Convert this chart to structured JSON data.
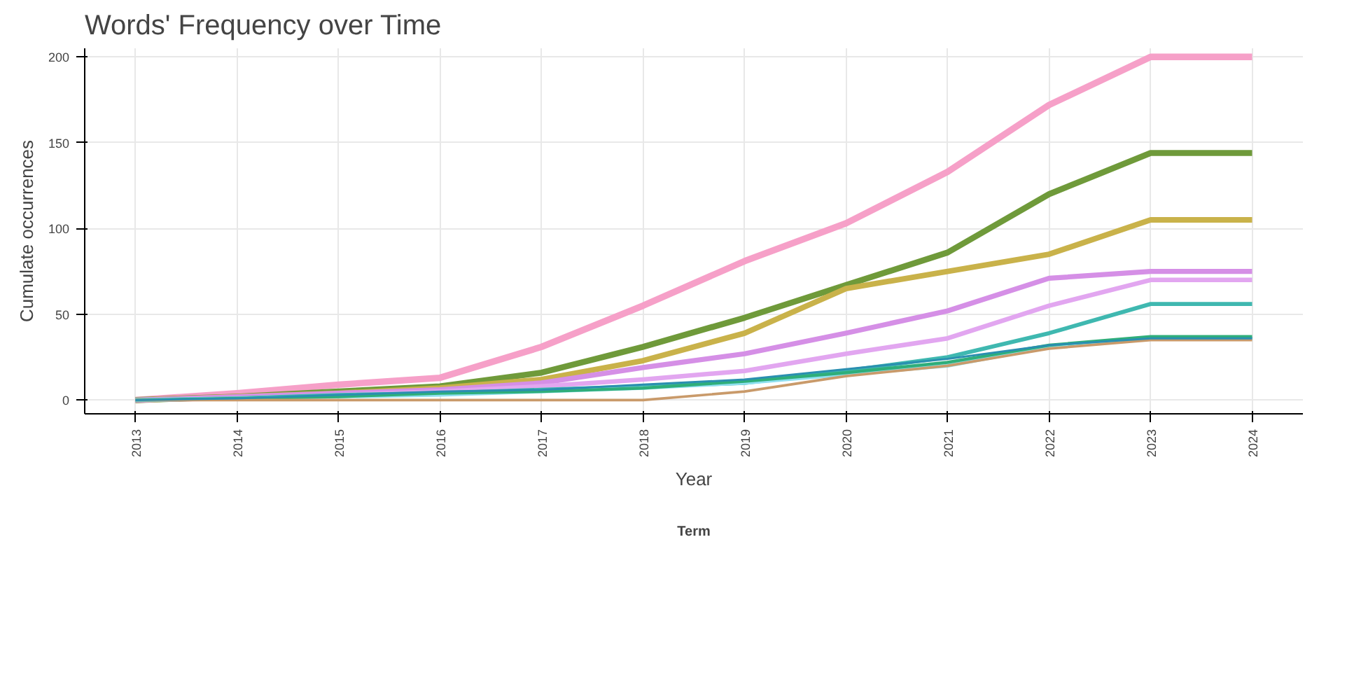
{
  "chart_data": {
    "type": "line",
    "title": "Words' Frequency over Time",
    "xlabel": "Year",
    "ylabel": "Cumulate occurrences",
    "legend_title": "Term",
    "x": [
      2013,
      2014,
      2015,
      2016,
      2017,
      2018,
      2019,
      2020,
      2021,
      2022,
      2023,
      2024
    ],
    "series": [
      {
        "color": "#f6a0c8",
        "values": [
          0,
          4,
          9,
          13,
          31,
          55,
          81,
          103,
          133,
          172,
          200,
          200
        ]
      },
      {
        "color": "#6f9a3a",
        "values": [
          0,
          2,
          5,
          8,
          16,
          31,
          48,
          67,
          86,
          120,
          144,
          144
        ]
      },
      {
        "color": "#c9b24a",
        "values": [
          0,
          2,
          4,
          7,
          12,
          23,
          39,
          65,
          75,
          85,
          105,
          105
        ]
      },
      {
        "color": "#d58fe6",
        "values": [
          0,
          2,
          4,
          6,
          10,
          19,
          27,
          39,
          52,
          71,
          75,
          75
        ]
      },
      {
        "color": "#e2a6f0",
        "values": [
          0,
          1,
          3,
          5,
          8,
          12,
          17,
          27,
          36,
          55,
          70,
          70
        ]
      },
      {
        "color": "#3fb8b0",
        "values": [
          0,
          1,
          3,
          4,
          6,
          8,
          10,
          17,
          25,
          39,
          56,
          56
        ]
      },
      {
        "color": "#8fe0f0",
        "values": [
          0,
          1,
          2,
          3,
          5,
          7,
          10,
          15,
          20,
          31,
          36,
          36
        ]
      },
      {
        "color": "#2fae7a",
        "values": [
          0,
          1,
          2,
          4,
          5,
          7,
          11,
          16,
          22,
          32,
          37,
          37
        ]
      },
      {
        "color": "#c99a6a",
        "values": [
          0,
          0,
          0,
          0,
          0,
          0,
          5,
          14,
          20,
          30,
          35,
          35
        ]
      },
      {
        "color": "#2a8fb0",
        "values": [
          0,
          1,
          3,
          5,
          6,
          9,
          12,
          18,
          24,
          32,
          36,
          36
        ]
      }
    ],
    "xlim": [
      2012.5,
      2024.5
    ],
    "ylim": [
      -8,
      205
    ],
    "xticks": [
      2013,
      2014,
      2015,
      2016,
      2017,
      2018,
      2019,
      2020,
      2021,
      2022,
      2023,
      2024
    ],
    "yticks": [
      0,
      50,
      100,
      150,
      200
    ],
    "grid": true
  }
}
